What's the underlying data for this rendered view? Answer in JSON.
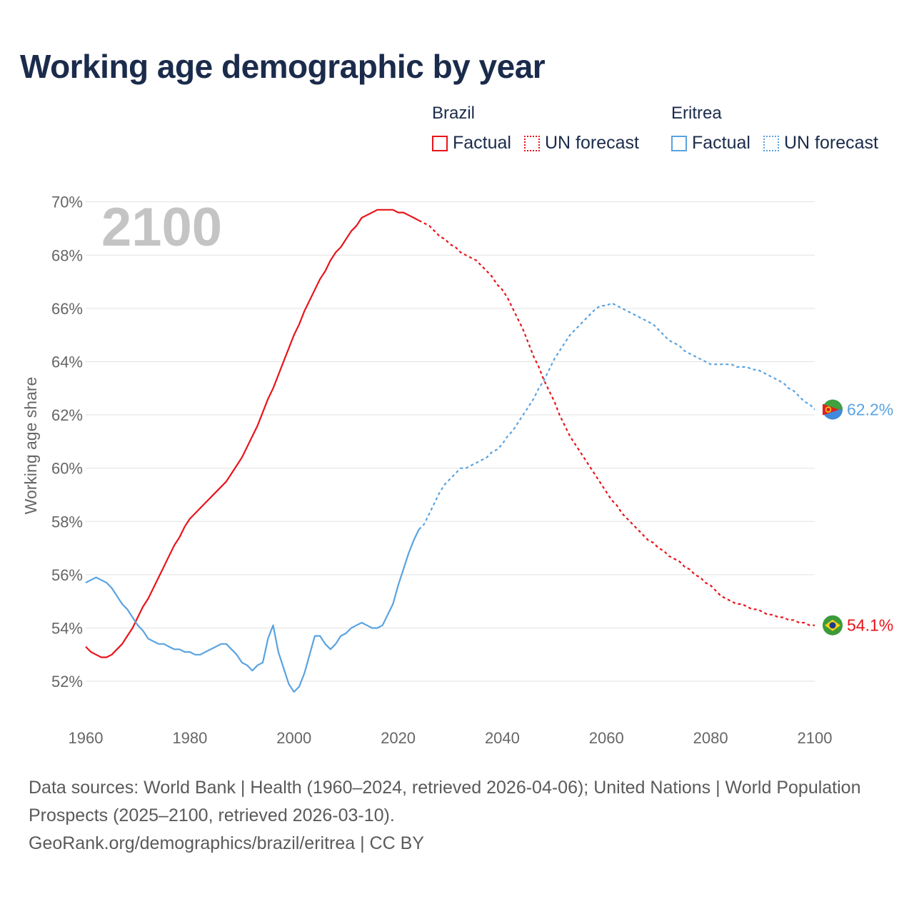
{
  "title": "Working age demographic by year",
  "legend": {
    "groups": [
      {
        "country": "Brazil",
        "color": "#e8141a",
        "items": [
          {
            "label": "Factual",
            "style": "solid"
          },
          {
            "label": "UN forecast",
            "style": "dotted"
          }
        ]
      },
      {
        "country": "Eritrea",
        "color": "#5aa3e0",
        "items": [
          {
            "label": "Factual",
            "style": "solid"
          },
          {
            "label": "UN forecast",
            "style": "dotted"
          }
        ]
      }
    ]
  },
  "chart_data": {
    "type": "line",
    "title": "Working age demographic by year",
    "year_watermark": "2100",
    "xlabel": "",
    "ylabel": "Working age share",
    "xlim": [
      1960,
      2100
    ],
    "ylim": [
      50.5,
      70.5
    ],
    "x_ticks": [
      "1960",
      "1980",
      "2000",
      "2020",
      "2040",
      "2060",
      "2080",
      "2100"
    ],
    "y_ticks": [
      "52%",
      "54%",
      "56%",
      "58%",
      "60%",
      "62%",
      "64%",
      "66%",
      "68%",
      "70%"
    ],
    "grid": true,
    "series": [
      {
        "name": "Brazil",
        "color": "#e8141a",
        "end_label": "54.1%",
        "factual": [
          [
            1960,
            53.3
          ],
          [
            1961,
            53.1
          ],
          [
            1962,
            53.0
          ],
          [
            1963,
            52.9
          ],
          [
            1964,
            52.9
          ],
          [
            1965,
            53.0
          ],
          [
            1966,
            53.2
          ],
          [
            1967,
            53.4
          ],
          [
            1968,
            53.7
          ],
          [
            1969,
            54.0
          ],
          [
            1970,
            54.4
          ],
          [
            1971,
            54.8
          ],
          [
            1972,
            55.1
          ],
          [
            1973,
            55.5
          ],
          [
            1974,
            55.9
          ],
          [
            1975,
            56.3
          ],
          [
            1976,
            56.7
          ],
          [
            1977,
            57.1
          ],
          [
            1978,
            57.4
          ],
          [
            1979,
            57.8
          ],
          [
            1980,
            58.1
          ],
          [
            1981,
            58.3
          ],
          [
            1982,
            58.5
          ],
          [
            1983,
            58.7
          ],
          [
            1984,
            58.9
          ],
          [
            1985,
            59.1
          ],
          [
            1986,
            59.3
          ],
          [
            1987,
            59.5
          ],
          [
            1988,
            59.8
          ],
          [
            1989,
            60.1
          ],
          [
            1990,
            60.4
          ],
          [
            1991,
            60.8
          ],
          [
            1992,
            61.2
          ],
          [
            1993,
            61.6
          ],
          [
            1994,
            62.1
          ],
          [
            1995,
            62.6
          ],
          [
            1996,
            63.0
          ],
          [
            1997,
            63.5
          ],
          [
            1998,
            64.0
          ],
          [
            1999,
            64.5
          ],
          [
            2000,
            65.0
          ],
          [
            2001,
            65.4
          ],
          [
            2002,
            65.9
          ],
          [
            2003,
            66.3
          ],
          [
            2004,
            66.7
          ],
          [
            2005,
            67.1
          ],
          [
            2006,
            67.4
          ],
          [
            2007,
            67.8
          ],
          [
            2008,
            68.1
          ],
          [
            2009,
            68.3
          ],
          [
            2010,
            68.6
          ],
          [
            2011,
            68.9
          ],
          [
            2012,
            69.1
          ],
          [
            2013,
            69.4
          ],
          [
            2014,
            69.5
          ],
          [
            2015,
            69.6
          ],
          [
            2016,
            69.7
          ],
          [
            2017,
            69.7
          ],
          [
            2018,
            69.7
          ],
          [
            2019,
            69.7
          ],
          [
            2020,
            69.6
          ],
          [
            2021,
            69.6
          ],
          [
            2022,
            69.5
          ],
          [
            2023,
            69.4
          ],
          [
            2024,
            69.3
          ]
        ],
        "forecast": [
          [
            2024,
            69.3
          ],
          [
            2025,
            69.2
          ],
          [
            2026,
            69.1
          ],
          [
            2027,
            68.9
          ],
          [
            2028,
            68.7
          ],
          [
            2029,
            68.6
          ],
          [
            2030,
            68.4
          ],
          [
            2031,
            68.3
          ],
          [
            2032,
            68.1
          ],
          [
            2033,
            68.0
          ],
          [
            2034,
            67.9
          ],
          [
            2035,
            67.8
          ],
          [
            2036,
            67.6
          ],
          [
            2037,
            67.4
          ],
          [
            2038,
            67.2
          ],
          [
            2039,
            66.9
          ],
          [
            2040,
            66.7
          ],
          [
            2041,
            66.4
          ],
          [
            2042,
            66.0
          ],
          [
            2043,
            65.6
          ],
          [
            2044,
            65.2
          ],
          [
            2045,
            64.7
          ],
          [
            2046,
            64.2
          ],
          [
            2047,
            63.8
          ],
          [
            2048,
            63.3
          ],
          [
            2049,
            62.9
          ],
          [
            2050,
            62.5
          ],
          [
            2051,
            62.0
          ],
          [
            2052,
            61.6
          ],
          [
            2053,
            61.2
          ],
          [
            2054,
            60.9
          ],
          [
            2055,
            60.6
          ],
          [
            2056,
            60.3
          ],
          [
            2057,
            60.0
          ],
          [
            2058,
            59.7
          ],
          [
            2059,
            59.4
          ],
          [
            2060,
            59.1
          ],
          [
            2061,
            58.8
          ],
          [
            2062,
            58.6
          ],
          [
            2063,
            58.3
          ],
          [
            2064,
            58.1
          ],
          [
            2065,
            57.9
          ],
          [
            2066,
            57.7
          ],
          [
            2067,
            57.5
          ],
          [
            2068,
            57.3
          ],
          [
            2069,
            57.2
          ],
          [
            2070,
            57.0
          ],
          [
            2071,
            56.9
          ],
          [
            2072,
            56.7
          ],
          [
            2073,
            56.6
          ],
          [
            2074,
            56.5
          ],
          [
            2075,
            56.3
          ],
          [
            2076,
            56.2
          ],
          [
            2077,
            56.0
          ],
          [
            2078,
            55.9
          ],
          [
            2079,
            55.7
          ],
          [
            2080,
            55.6
          ],
          [
            2081,
            55.4
          ],
          [
            2082,
            55.2
          ],
          [
            2083,
            55.1
          ],
          [
            2084,
            55.0
          ],
          [
            2085,
            54.9
          ],
          [
            2086,
            54.9
          ],
          [
            2087,
            54.8
          ],
          [
            2088,
            54.7
          ],
          [
            2089,
            54.7
          ],
          [
            2090,
            54.6
          ],
          [
            2091,
            54.5
          ],
          [
            2092,
            54.5
          ],
          [
            2093,
            54.4
          ],
          [
            2094,
            54.4
          ],
          [
            2095,
            54.3
          ],
          [
            2096,
            54.3
          ],
          [
            2097,
            54.2
          ],
          [
            2098,
            54.2
          ],
          [
            2099,
            54.1
          ],
          [
            2100,
            54.1
          ]
        ]
      },
      {
        "name": "Eritrea",
        "color": "#5aa3e0",
        "end_label": "62.2%",
        "factual": [
          [
            1960,
            55.7
          ],
          [
            1961,
            55.8
          ],
          [
            1962,
            55.9
          ],
          [
            1963,
            55.8
          ],
          [
            1964,
            55.7
          ],
          [
            1965,
            55.5
          ],
          [
            1966,
            55.2
          ],
          [
            1967,
            54.9
          ],
          [
            1968,
            54.7
          ],
          [
            1969,
            54.4
          ],
          [
            1970,
            54.1
          ],
          [
            1971,
            53.9
          ],
          [
            1972,
            53.6
          ],
          [
            1973,
            53.5
          ],
          [
            1974,
            53.4
          ],
          [
            1975,
            53.4
          ],
          [
            1976,
            53.3
          ],
          [
            1977,
            53.2
          ],
          [
            1978,
            53.2
          ],
          [
            1979,
            53.1
          ],
          [
            1980,
            53.1
          ],
          [
            1981,
            53.0
          ],
          [
            1982,
            53.0
          ],
          [
            1983,
            53.1
          ],
          [
            1984,
            53.2
          ],
          [
            1985,
            53.3
          ],
          [
            1986,
            53.4
          ],
          [
            1987,
            53.4
          ],
          [
            1988,
            53.2
          ],
          [
            1989,
            53.0
          ],
          [
            1990,
            52.7
          ],
          [
            1991,
            52.6
          ],
          [
            1992,
            52.4
          ],
          [
            1993,
            52.6
          ],
          [
            1994,
            52.7
          ],
          [
            1995,
            53.6
          ],
          [
            1996,
            54.1
          ],
          [
            1997,
            53.1
          ],
          [
            1998,
            52.5
          ],
          [
            1999,
            51.9
          ],
          [
            2000,
            51.6
          ],
          [
            2001,
            51.8
          ],
          [
            2002,
            52.3
          ],
          [
            2003,
            53.0
          ],
          [
            2004,
            53.7
          ],
          [
            2005,
            53.7
          ],
          [
            2006,
            53.4
          ],
          [
            2007,
            53.2
          ],
          [
            2008,
            53.4
          ],
          [
            2009,
            53.7
          ],
          [
            2010,
            53.8
          ],
          [
            2011,
            54.0
          ],
          [
            2012,
            54.1
          ],
          [
            2013,
            54.2
          ],
          [
            2014,
            54.1
          ],
          [
            2015,
            54.0
          ],
          [
            2016,
            54.0
          ],
          [
            2017,
            54.1
          ],
          [
            2018,
            54.5
          ],
          [
            2019,
            54.9
          ],
          [
            2020,
            55.6
          ],
          [
            2021,
            56.2
          ],
          [
            2022,
            56.8
          ],
          [
            2023,
            57.3
          ],
          [
            2024,
            57.7
          ]
        ],
        "forecast": [
          [
            2024,
            57.7
          ],
          [
            2025,
            57.9
          ],
          [
            2026,
            58.3
          ],
          [
            2027,
            58.7
          ],
          [
            2028,
            59.1
          ],
          [
            2029,
            59.4
          ],
          [
            2030,
            59.6
          ],
          [
            2031,
            59.8
          ],
          [
            2032,
            60.0
          ],
          [
            2033,
            60.0
          ],
          [
            2034,
            60.1
          ],
          [
            2035,
            60.2
          ],
          [
            2036,
            60.3
          ],
          [
            2037,
            60.4
          ],
          [
            2038,
            60.6
          ],
          [
            2039,
            60.7
          ],
          [
            2040,
            60.9
          ],
          [
            2041,
            61.2
          ],
          [
            2042,
            61.4
          ],
          [
            2043,
            61.7
          ],
          [
            2044,
            62.0
          ],
          [
            2045,
            62.3
          ],
          [
            2046,
            62.6
          ],
          [
            2047,
            63.0
          ],
          [
            2048,
            63.3
          ],
          [
            2049,
            63.7
          ],
          [
            2050,
            64.1
          ],
          [
            2051,
            64.4
          ],
          [
            2052,
            64.7
          ],
          [
            2053,
            65.0
          ],
          [
            2054,
            65.2
          ],
          [
            2055,
            65.4
          ],
          [
            2056,
            65.6
          ],
          [
            2057,
            65.8
          ],
          [
            2058,
            66.0
          ],
          [
            2059,
            66.1
          ],
          [
            2060,
            66.1
          ],
          [
            2061,
            66.2
          ],
          [
            2062,
            66.1
          ],
          [
            2063,
            66.0
          ],
          [
            2064,
            65.9
          ],
          [
            2065,
            65.8
          ],
          [
            2066,
            65.7
          ],
          [
            2067,
            65.6
          ],
          [
            2068,
            65.5
          ],
          [
            2069,
            65.4
          ],
          [
            2070,
            65.2
          ],
          [
            2071,
            65.0
          ],
          [
            2072,
            64.8
          ],
          [
            2073,
            64.7
          ],
          [
            2074,
            64.6
          ],
          [
            2075,
            64.4
          ],
          [
            2076,
            64.3
          ],
          [
            2077,
            64.2
          ],
          [
            2078,
            64.1
          ],
          [
            2079,
            64.0
          ],
          [
            2080,
            63.9
          ],
          [
            2081,
            63.9
          ],
          [
            2082,
            63.9
          ],
          [
            2083,
            63.9
          ],
          [
            2084,
            63.9
          ],
          [
            2085,
            63.8
          ],
          [
            2086,
            63.8
          ],
          [
            2087,
            63.8
          ],
          [
            2088,
            63.7
          ],
          [
            2089,
            63.7
          ],
          [
            2090,
            63.6
          ],
          [
            2091,
            63.5
          ],
          [
            2092,
            63.4
          ],
          [
            2093,
            63.3
          ],
          [
            2094,
            63.2
          ],
          [
            2095,
            63.0
          ],
          [
            2096,
            62.9
          ],
          [
            2097,
            62.7
          ],
          [
            2098,
            62.5
          ],
          [
            2099,
            62.4
          ],
          [
            2100,
            62.2
          ]
        ]
      }
    ]
  },
  "footer": {
    "sources": "Data sources: World Bank | Health (1960–2024, retrieved 2026-04-06); United Nations | World Population Prospects (2025–2100, retrieved 2026-03-10).",
    "credit": "GeoRank.org/demographics/brazil/eritrea | CC BY"
  }
}
